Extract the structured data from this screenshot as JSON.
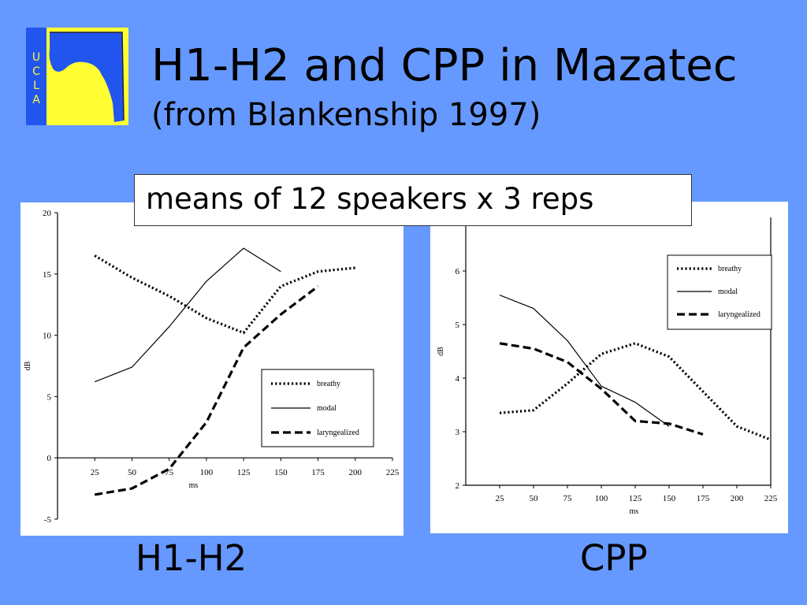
{
  "slide": {
    "title": "H1-H2 and CPP in Mazatec",
    "subtitle": "(from Blankenship 1997)",
    "note": "means of 12 speakers x 3 reps",
    "caption_left": "H1-H2",
    "caption_right": "CPP",
    "logo_letters": [
      "U",
      "C",
      "L",
      "A"
    ],
    "colors": {
      "background": "#6699ff",
      "logo_blue": "#2255ee",
      "logo_yellow": "#ffff33"
    }
  },
  "chart_data": [
    {
      "type": "line",
      "title": "",
      "xlabel": "ms",
      "ylabel": "dB",
      "xlim": [
        0,
        225
      ],
      "ylim": [
        -5,
        20
      ],
      "xticks": [
        25,
        50,
        75,
        100,
        125,
        150,
        175,
        200,
        225
      ],
      "yticks": [
        -5,
        0,
        5,
        10,
        15,
        20
      ],
      "grid": false,
      "legend_position": "bottom-right",
      "series": [
        {
          "name": "breathy",
          "style": "dotted",
          "x": [
            25,
            50,
            75,
            100,
            125,
            150,
            175,
            200
          ],
          "values": [
            16.5,
            14.7,
            13.2,
            11.4,
            10.2,
            14.0,
            15.2,
            15.5
          ]
        },
        {
          "name": "modal",
          "style": "solid",
          "x": [
            25,
            50,
            75,
            100,
            125,
            150
          ],
          "values": [
            6.2,
            7.4,
            10.7,
            14.4,
            17.1,
            15.2
          ]
        },
        {
          "name": "laryngealized",
          "style": "dashed",
          "x": [
            25,
            50,
            75,
            100,
            125,
            150,
            175
          ],
          "values": [
            -3.0,
            -2.5,
            -0.9,
            2.9,
            9.0,
            11.7,
            14.0
          ]
        }
      ]
    },
    {
      "type": "line",
      "title": "",
      "xlabel": "ms",
      "ylabel": "dB",
      "xlim": [
        0,
        225
      ],
      "ylim": [
        2,
        7
      ],
      "xticks": [
        25,
        50,
        75,
        100,
        125,
        150,
        175,
        200,
        225
      ],
      "yticks": [
        2,
        3,
        4,
        5,
        6
      ],
      "grid": false,
      "legend_position": "top-right",
      "series": [
        {
          "name": "breathy",
          "style": "dotted",
          "x": [
            25,
            50,
            75,
            100,
            125,
            150,
            175,
            200,
            225
          ],
          "values": [
            3.35,
            3.4,
            3.9,
            4.45,
            4.65,
            4.4,
            3.75,
            3.1,
            2.85
          ]
        },
        {
          "name": "modal",
          "style": "solid",
          "x": [
            25,
            50,
            75,
            100,
            125,
            150
          ],
          "values": [
            5.55,
            5.3,
            4.7,
            3.85,
            3.55,
            3.1
          ]
        },
        {
          "name": "laryngealized",
          "style": "dashed",
          "x": [
            25,
            50,
            75,
            100,
            125,
            150,
            175
          ],
          "values": [
            4.65,
            4.55,
            4.3,
            3.8,
            3.2,
            3.15,
            2.95
          ]
        }
      ]
    }
  ]
}
